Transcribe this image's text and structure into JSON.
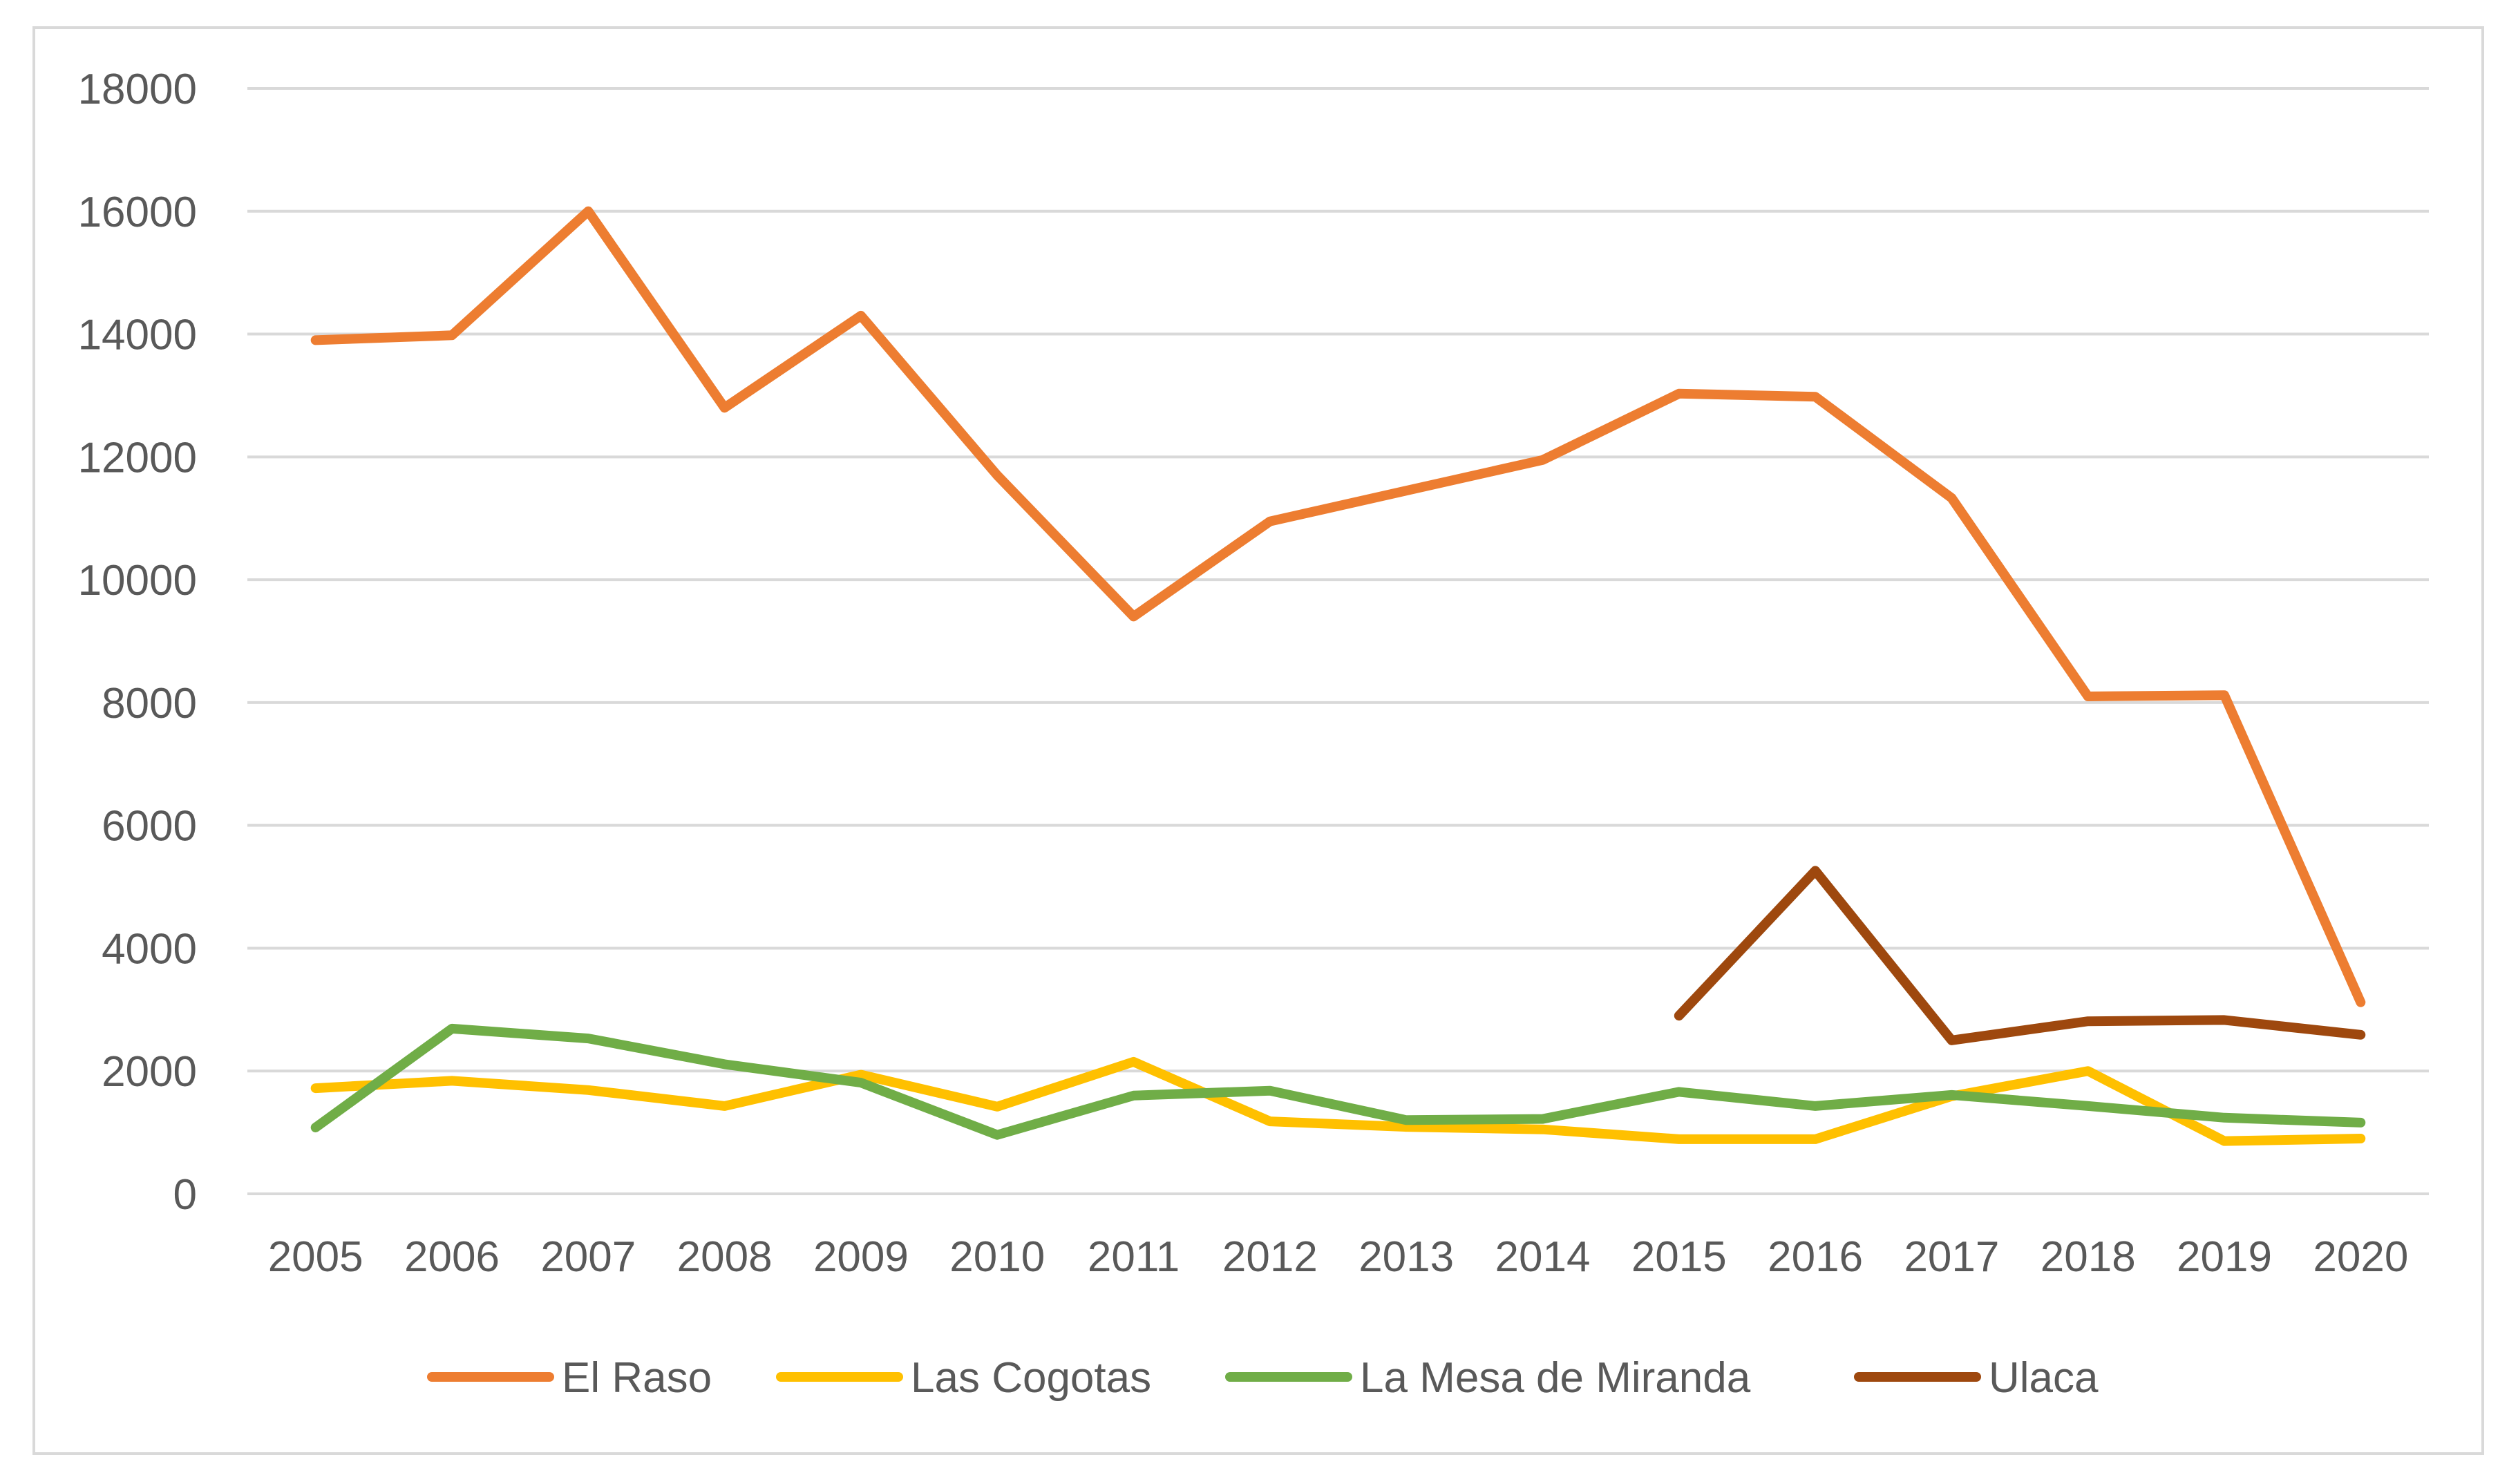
{
  "chart_data": {
    "type": "line",
    "title": "",
    "xlabel": "",
    "ylabel": "",
    "categories": [
      "2005",
      "2006",
      "2007",
      "2008",
      "2009",
      "2010",
      "2011",
      "2012",
      "2013",
      "2014",
      "2015",
      "2016",
      "2017",
      "2018",
      "2019",
      "2020"
    ],
    "ylim": [
      0,
      18000
    ],
    "yticks": [
      "0",
      "2000",
      "4000",
      "6000",
      "8000",
      "10000",
      "12000",
      "14000",
      "16000",
      "18000"
    ],
    "grid": true,
    "legend_position": "bottom",
    "series": [
      {
        "name": "El Raso",
        "color": "#ED7D31",
        "values": [
          13900,
          13980,
          16000,
          12800,
          14300,
          11700,
          9400,
          10950,
          11450,
          11950,
          13030,
          12980,
          11330,
          8100,
          8120,
          3120
        ]
      },
      {
        "name": "Las Cogotas",
        "color": "#FFC000",
        "values": [
          1720,
          1840,
          1690,
          1430,
          1940,
          1420,
          2150,
          1180,
          1090,
          1050,
          890,
          890,
          1590,
          2000,
          860,
          900
        ]
      },
      {
        "name": "La Mesa de Miranda",
        "color": "#70AD47",
        "values": [
          1080,
          2690,
          2530,
          2110,
          1810,
          960,
          1600,
          1680,
          1200,
          1220,
          1660,
          1430,
          1610,
          1430,
          1240,
          1160
        ]
      },
      {
        "name": "Ulaca",
        "color": "#9E480E",
        "values": [
          null,
          null,
          null,
          null,
          null,
          null,
          null,
          null,
          null,
          null,
          2900,
          5260,
          2500,
          2810,
          2830,
          2590
        ]
      }
    ]
  }
}
